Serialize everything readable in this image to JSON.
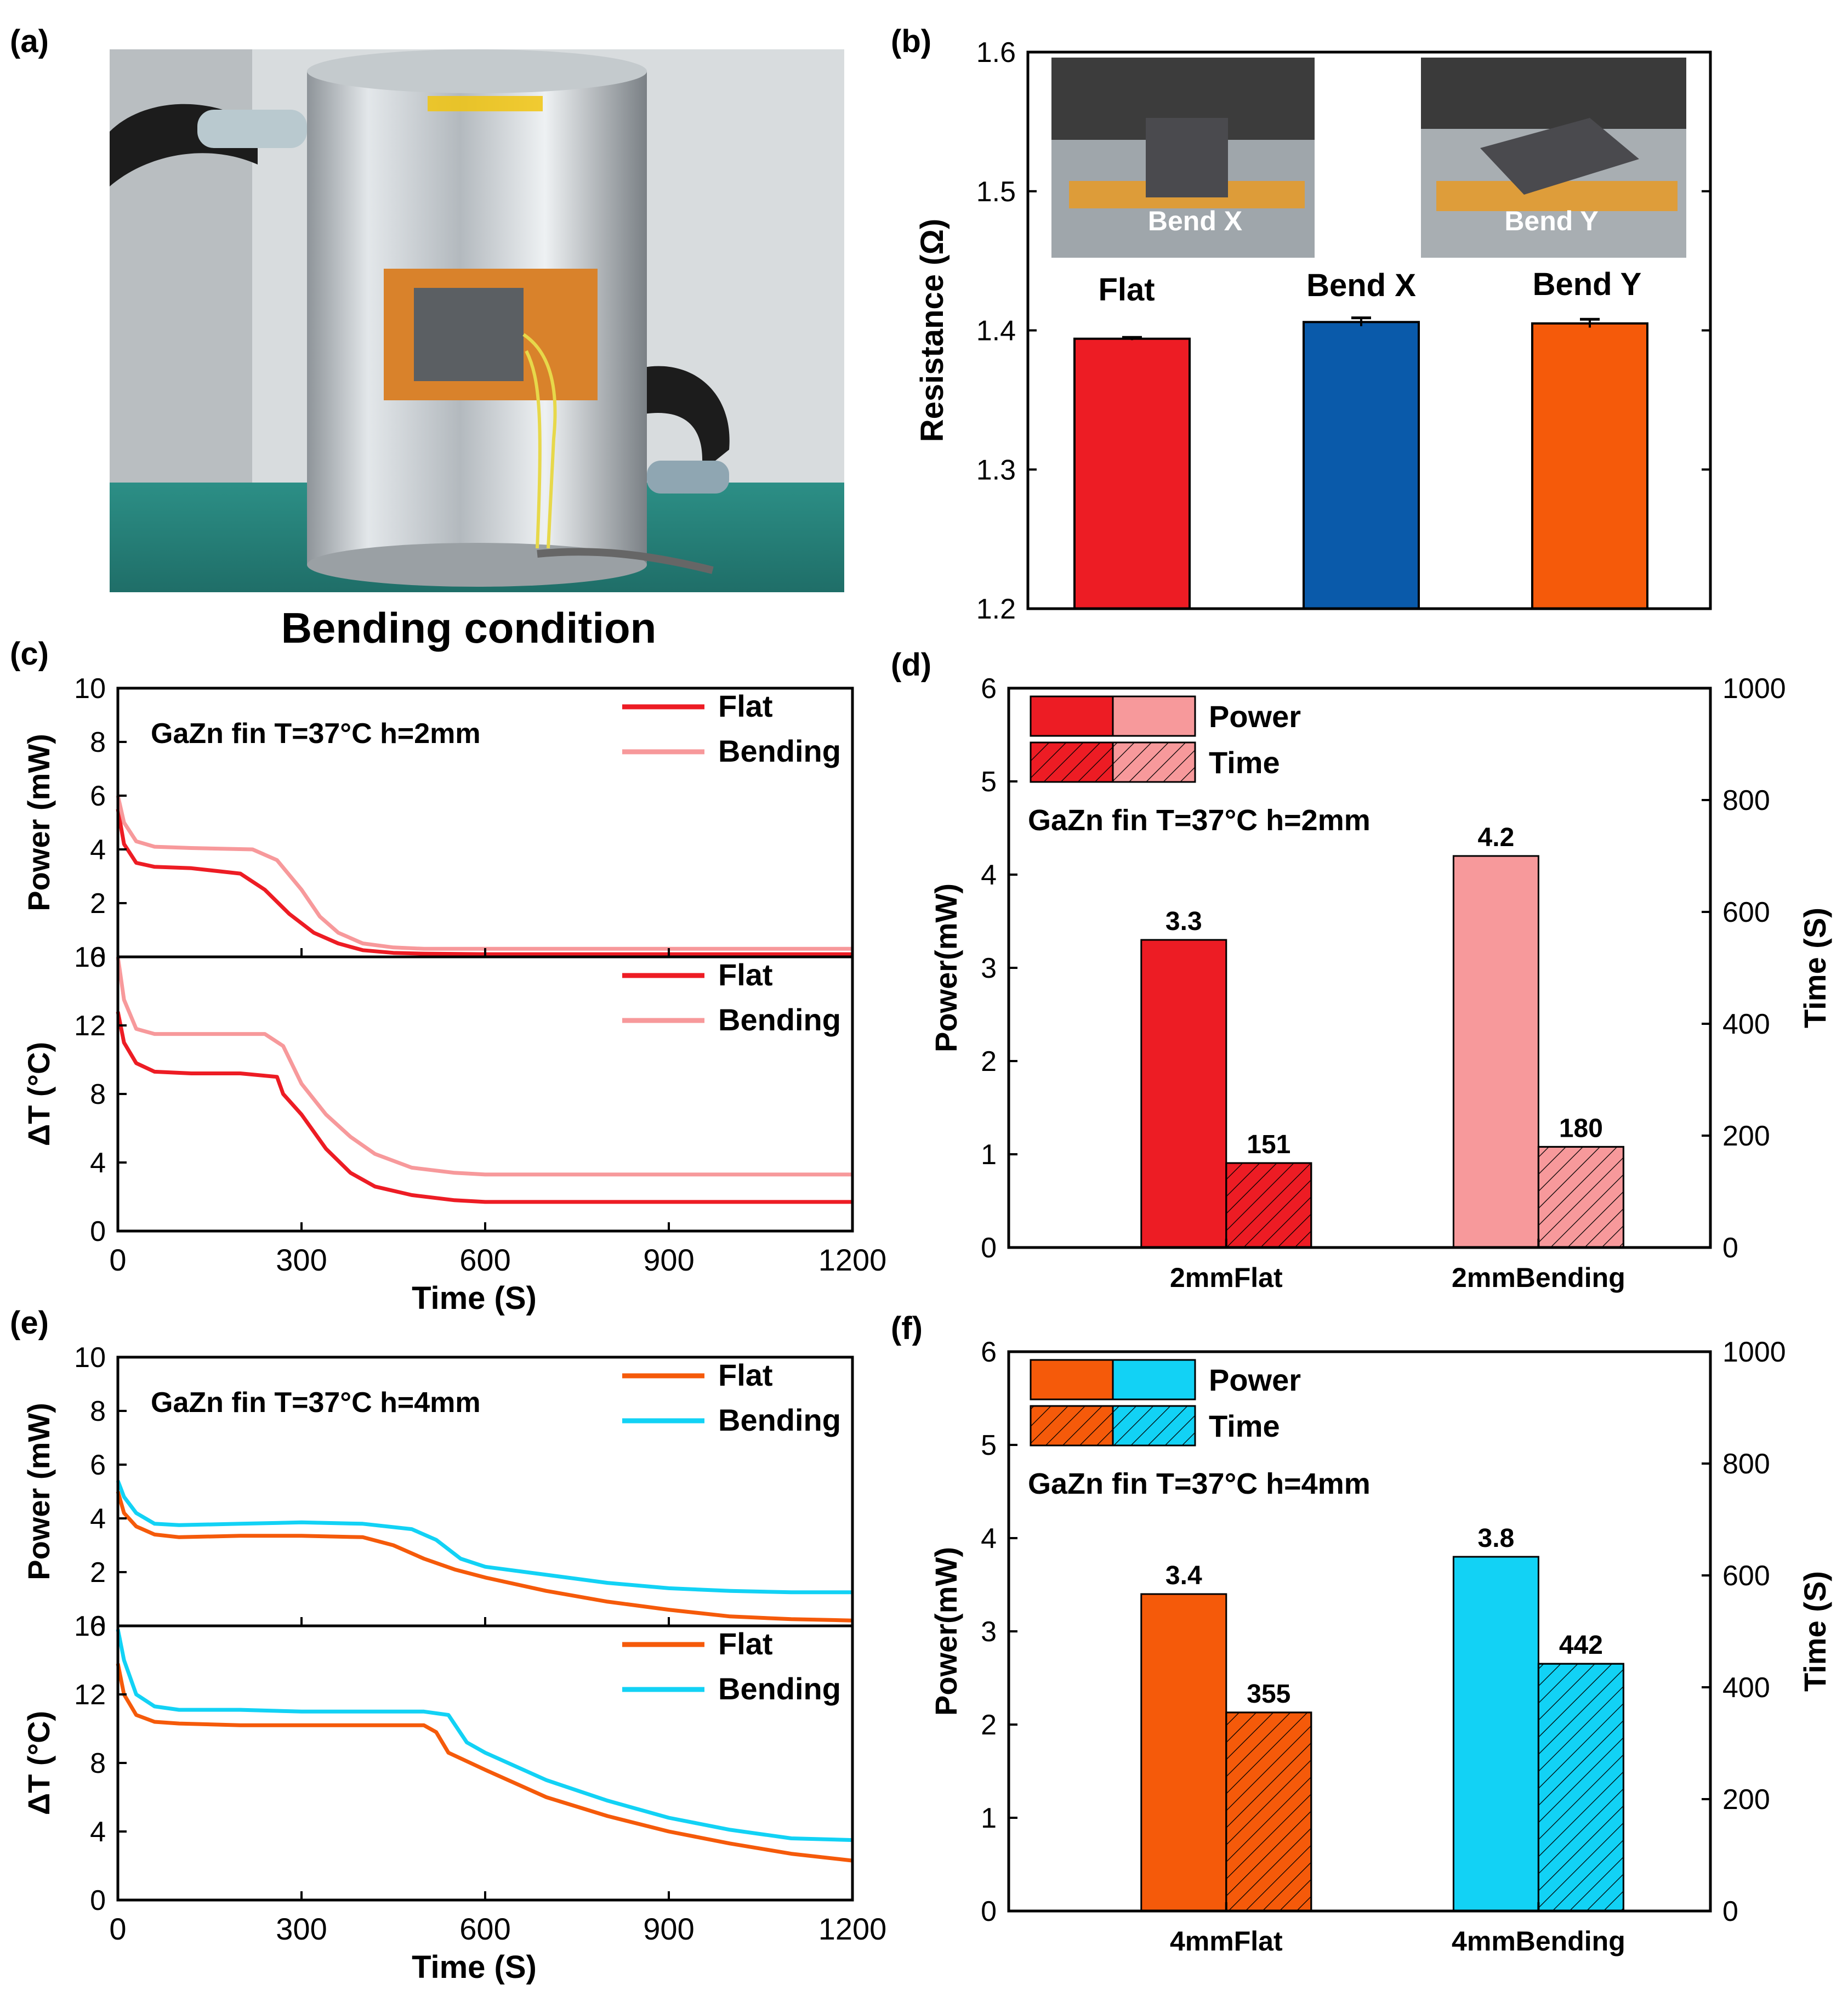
{
  "colors": {
    "flat_red": "#ED1C24",
    "bend_pink": "#F7999B",
    "bend_x_blue": "#0A5AAA",
    "bend_y_orange": "#F55A0A",
    "flat_orange": "#F55A0A",
    "bend_cyan": "#12D2F5"
  },
  "panel_a": {
    "label": "(a)",
    "caption": "Bending condition"
  },
  "chart_data": [
    {
      "id": "b",
      "panel_label": "(b)",
      "type": "bar",
      "categories": [
        "Flat",
        "Bend X",
        "Bend Y"
      ],
      "values": [
        1.394,
        1.406,
        1.405
      ],
      "errors": [
        0.001,
        0.003,
        0.003
      ],
      "ylabel": "Resistance (Ω)",
      "ylim": [
        1.2,
        1.6
      ],
      "yticks": [
        "1.2",
        "1.3",
        "1.4",
        "1.5",
        "1.6"
      ],
      "inset_labels": [
        "Bend X",
        "Bend Y"
      ]
    },
    {
      "id": "c",
      "panel_label": "(c)",
      "type": "line",
      "annotation": "GaZn fin T=37°C h=2mm",
      "xlabel": "Time (S)",
      "xlim": [
        0,
        1200
      ],
      "xticks": [
        "0",
        "300",
        "600",
        "900",
        "1200"
      ],
      "top": {
        "ylabel": "Power (mW)",
        "ylim": [
          0,
          10
        ],
        "yticks": [
          "0",
          "2",
          "4",
          "6",
          "8",
          "10"
        ],
        "series": [
          {
            "name": "Flat",
            "x": [
              0,
              10,
              30,
              60,
              120,
              200,
              240,
              280,
              320,
              360,
              400,
              450,
              500,
              600,
              800,
              1000,
              1200
            ],
            "y": [
              5.5,
              4.2,
              3.5,
              3.35,
              3.3,
              3.1,
              2.5,
              1.6,
              0.9,
              0.5,
              0.25,
              0.15,
              0.12,
              0.1,
              0.1,
              0.1,
              0.1
            ]
          },
          {
            "name": "Bending",
            "x": [
              0,
              10,
              30,
              60,
              120,
              220,
              260,
              300,
              330,
              360,
              400,
              450,
              500,
              600,
              800,
              1000,
              1200
            ],
            "y": [
              6.0,
              5.0,
              4.3,
              4.1,
              4.05,
              4.0,
              3.6,
              2.5,
              1.5,
              0.9,
              0.5,
              0.35,
              0.3,
              0.3,
              0.3,
              0.3,
              0.3
            ]
          }
        ]
      },
      "bottom": {
        "ylabel": "ΔT (°C)",
        "ylim": [
          0,
          16
        ],
        "yticks": [
          "0",
          "4",
          "8",
          "12",
          "16"
        ],
        "series": [
          {
            "name": "Flat",
            "x": [
              0,
              10,
              30,
              60,
              120,
              200,
              260,
              270,
              300,
              340,
              380,
              420,
              480,
              550,
              600,
              800,
              1000,
              1200
            ],
            "y": [
              12.8,
              11.0,
              9.8,
              9.3,
              9.2,
              9.2,
              9.0,
              8.0,
              6.8,
              4.8,
              3.4,
              2.6,
              2.1,
              1.8,
              1.7,
              1.7,
              1.7,
              1.7
            ]
          },
          {
            "name": "Bending",
            "x": [
              0,
              10,
              30,
              60,
              120,
              240,
              270,
              300,
              340,
              380,
              420,
              480,
              550,
              600,
              800,
              1000,
              1200
            ],
            "y": [
              16.0,
              13.5,
              11.8,
              11.5,
              11.5,
              11.5,
              10.8,
              8.6,
              6.8,
              5.5,
              4.5,
              3.7,
              3.4,
              3.3,
              3.3,
              3.3,
              3.3
            ]
          }
        ]
      }
    },
    {
      "id": "d",
      "panel_label": "(d)",
      "type": "bar",
      "annotation": "GaZn fin T=37°C h=2mm",
      "categories": [
        "2mmFlat",
        "2mmBending"
      ],
      "series": [
        {
          "name": "Power",
          "axis": "left",
          "values": [
            3.3,
            4.2
          ],
          "labels": [
            "3.3",
            "4.2"
          ]
        },
        {
          "name": "Time",
          "axis": "right",
          "values": [
            151,
            180
          ],
          "labels": [
            "151",
            "180"
          ]
        }
      ],
      "ylabel": "Power(mW)",
      "ylim": [
        0,
        6
      ],
      "yticks": [
        "0",
        "1",
        "2",
        "3",
        "4",
        "5",
        "6"
      ],
      "y2label": "Time (S)",
      "y2lim": [
        0,
        1000
      ],
      "y2ticks": [
        "0",
        "200",
        "400",
        "600",
        "800",
        "1000"
      ],
      "legend": [
        "Power",
        "Time"
      ]
    },
    {
      "id": "e",
      "panel_label": "(e)",
      "type": "line",
      "annotation": "GaZn fin T=37°C h=4mm",
      "xlabel": "Time (S)",
      "xlim": [
        0,
        1200
      ],
      "xticks": [
        "0",
        "300",
        "600",
        "900",
        "1200"
      ],
      "top": {
        "ylabel": "Power (mW)",
        "ylim": [
          0,
          10
        ],
        "yticks": [
          "0",
          "2",
          "4",
          "6",
          "8",
          "10"
        ],
        "series": [
          {
            "name": "Flat",
            "x": [
              0,
              10,
              30,
              60,
              100,
              200,
              300,
              400,
              450,
              500,
              550,
              600,
              700,
              800,
              900,
              1000,
              1100,
              1200
            ],
            "y": [
              5.0,
              4.2,
              3.7,
              3.4,
              3.3,
              3.35,
              3.35,
              3.3,
              3.0,
              2.5,
              2.1,
              1.8,
              1.3,
              0.9,
              0.6,
              0.35,
              0.25,
              0.2
            ]
          },
          {
            "name": "Bending",
            "x": [
              0,
              10,
              30,
              60,
              100,
              200,
              300,
              400,
              480,
              520,
              560,
              600,
              700,
              800,
              900,
              1000,
              1100,
              1200
            ],
            "y": [
              5.4,
              4.8,
              4.2,
              3.8,
              3.75,
              3.8,
              3.85,
              3.8,
              3.6,
              3.2,
              2.5,
              2.2,
              1.9,
              1.6,
              1.4,
              1.3,
              1.25,
              1.25
            ]
          }
        ]
      },
      "bottom": {
        "ylabel": "ΔT (°C)",
        "ylim": [
          0,
          16
        ],
        "yticks": [
          "0",
          "4",
          "8",
          "12",
          "16"
        ],
        "series": [
          {
            "name": "Flat",
            "x": [
              0,
              10,
              30,
              60,
              100,
              200,
              300,
              400,
              500,
              520,
              540,
              600,
              700,
              800,
              900,
              1000,
              1100,
              1200
            ],
            "y": [
              13.8,
              12.0,
              10.8,
              10.4,
              10.3,
              10.2,
              10.2,
              10.2,
              10.2,
              9.8,
              8.6,
              7.6,
              6.0,
              4.9,
              4.0,
              3.3,
              2.7,
              2.3
            ]
          },
          {
            "name": "Bending",
            "x": [
              0,
              10,
              30,
              60,
              100,
              200,
              300,
              400,
              500,
              540,
              570,
              600,
              700,
              800,
              900,
              1000,
              1100,
              1200
            ],
            "y": [
              15.8,
              14.0,
              12.0,
              11.3,
              11.1,
              11.1,
              11.0,
              11.0,
              11.0,
              10.8,
              9.2,
              8.6,
              7.0,
              5.8,
              4.8,
              4.1,
              3.6,
              3.5
            ]
          }
        ]
      }
    },
    {
      "id": "f",
      "panel_label": "(f)",
      "type": "bar",
      "annotation": "GaZn fin T=37°C h=4mm",
      "categories": [
        "4mmFlat",
        "4mmBending"
      ],
      "series": [
        {
          "name": "Power",
          "axis": "left",
          "values": [
            3.4,
            3.8
          ],
          "labels": [
            "3.4",
            "3.8"
          ]
        },
        {
          "name": "Time",
          "axis": "right",
          "values": [
            355,
            442
          ],
          "labels": [
            "355",
            "442"
          ]
        }
      ],
      "ylabel": "Power(mW)",
      "ylim": [
        0,
        6
      ],
      "yticks": [
        "0",
        "1",
        "2",
        "3",
        "4",
        "5",
        "6"
      ],
      "y2label": "Time (S)",
      "y2lim": [
        0,
        1000
      ],
      "y2ticks": [
        "0",
        "200",
        "400",
        "600",
        "800",
        "1000"
      ],
      "legend": [
        "Power",
        "Time"
      ]
    }
  ]
}
